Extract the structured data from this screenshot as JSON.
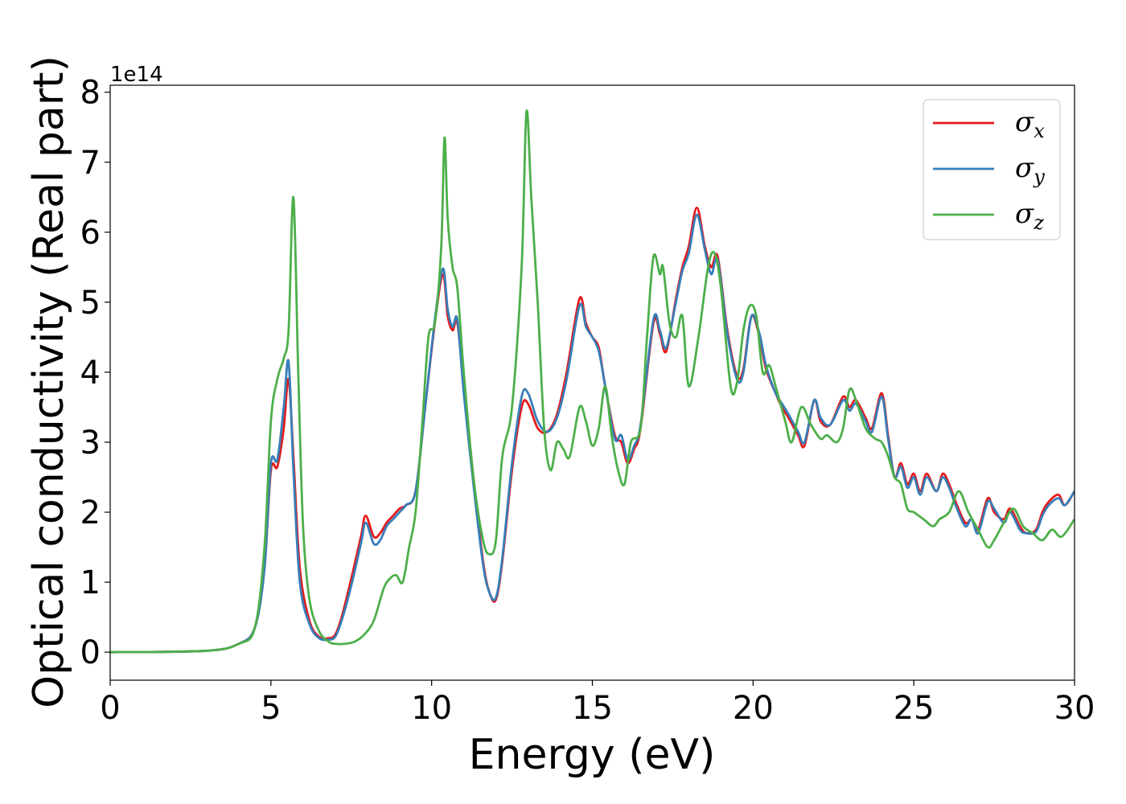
{
  "chart_data": {
    "type": "line",
    "title": "",
    "xlabel": "Energy (eV)",
    "ylabel": "Optical conductivity (Real part)",
    "y_offset_label": "1e14",
    "xlim": [
      0,
      30
    ],
    "ylim": [
      -0.4,
      8.1
    ],
    "xticks": [
      0,
      5,
      10,
      15,
      20,
      25,
      30
    ],
    "yticks": [
      0,
      1,
      2,
      3,
      4,
      5,
      6,
      7,
      8
    ],
    "xtick_labels": [
      "0",
      "5",
      "10",
      "15",
      "20",
      "25",
      "30"
    ],
    "ytick_labels": [
      "0",
      "1",
      "2",
      "3",
      "4",
      "5",
      "6",
      "7",
      "8"
    ],
    "grid": false,
    "legend_position": "top-right",
    "series": [
      {
        "name": "σx",
        "legend_symbol": "σ",
        "legend_subscript": "x",
        "color": "#e41a1c",
        "x": [
          0,
          3,
          4,
          4.5,
          4.8,
          5.0,
          5.2,
          5.4,
          5.55,
          5.7,
          5.9,
          6.2,
          6.5,
          6.8,
          7.0,
          7.2,
          7.5,
          7.8,
          7.95,
          8.2,
          8.4,
          8.6,
          8.8,
          9.0,
          9.2,
          9.5,
          9.8,
          10.1,
          10.35,
          10.5,
          10.65,
          10.8,
          11.0,
          11.3,
          11.6,
          11.8,
          12.0,
          12.2,
          12.5,
          12.8,
          13.0,
          13.3,
          13.6,
          13.9,
          14.2,
          14.6,
          14.8,
          15.0,
          15.2,
          15.4,
          15.7,
          15.9,
          16.1,
          16.3,
          16.5,
          16.9,
          17.1,
          17.3,
          17.6,
          17.8,
          18.0,
          18.25,
          18.5,
          18.7,
          18.9,
          19.2,
          19.5,
          19.7,
          19.95,
          20.2,
          20.4,
          20.7,
          20.9,
          21.1,
          21.4,
          21.6,
          21.9,
          22.1,
          22.4,
          22.8,
          23.0,
          23.2,
          23.5,
          23.7,
          24.0,
          24.2,
          24.4,
          24.6,
          24.8,
          25.0,
          25.2,
          25.4,
          25.7,
          25.9,
          26.1,
          26.3,
          26.6,
          26.8,
          27.0,
          27.3,
          27.5,
          27.8,
          28.0,
          28.3,
          28.5,
          28.8,
          29.0,
          29.2,
          29.5,
          29.7,
          30.0
        ],
        "values": [
          0,
          0.02,
          0.12,
          0.35,
          1.2,
          2.6,
          2.65,
          3.2,
          3.9,
          2.8,
          1.2,
          0.45,
          0.22,
          0.2,
          0.25,
          0.5,
          1.05,
          1.65,
          1.95,
          1.65,
          1.7,
          1.85,
          1.95,
          2.05,
          2.1,
          2.3,
          3.5,
          4.7,
          5.4,
          4.8,
          4.6,
          4.7,
          3.8,
          2.5,
          1.3,
          0.85,
          0.75,
          1.3,
          2.6,
          3.5,
          3.55,
          3.2,
          3.15,
          3.4,
          4.0,
          5.05,
          4.7,
          4.5,
          4.35,
          3.8,
          3.1,
          3.0,
          2.7,
          2.9,
          3.2,
          4.7,
          4.55,
          4.3,
          5.05,
          5.5,
          5.8,
          6.35,
          5.8,
          5.5,
          5.65,
          4.6,
          3.95,
          4.05,
          4.8,
          4.5,
          4.05,
          3.7,
          3.5,
          3.35,
          3.1,
          2.95,
          3.6,
          3.3,
          3.25,
          3.65,
          3.5,
          3.6,
          3.35,
          3.2,
          3.7,
          3.1,
          2.5,
          2.7,
          2.4,
          2.55,
          2.3,
          2.55,
          2.3,
          2.55,
          2.4,
          2.15,
          1.85,
          1.9,
          1.75,
          2.2,
          2.0,
          1.9,
          2.05,
          1.8,
          1.7,
          1.75,
          2.0,
          2.15,
          2.25,
          2.1,
          2.3
        ]
      },
      {
        "name": "σy",
        "legend_symbol": "σ",
        "legend_subscript": "y",
        "color": "#377eb8",
        "x": [
          0,
          3,
          4,
          4.5,
          4.8,
          5.0,
          5.2,
          5.4,
          5.55,
          5.7,
          5.9,
          6.2,
          6.5,
          6.8,
          7.0,
          7.2,
          7.5,
          7.8,
          7.95,
          8.2,
          8.4,
          8.6,
          8.8,
          9.0,
          9.2,
          9.5,
          9.8,
          10.1,
          10.35,
          10.5,
          10.65,
          10.8,
          11.0,
          11.3,
          11.6,
          11.8,
          12.0,
          12.2,
          12.5,
          12.8,
          13.0,
          13.3,
          13.6,
          13.9,
          14.2,
          14.6,
          14.8,
          15.0,
          15.2,
          15.4,
          15.7,
          15.9,
          16.1,
          16.3,
          16.5,
          16.9,
          17.1,
          17.3,
          17.6,
          17.8,
          18.0,
          18.25,
          18.5,
          18.7,
          18.9,
          19.2,
          19.5,
          19.7,
          19.95,
          20.2,
          20.4,
          20.7,
          20.9,
          21.1,
          21.4,
          21.6,
          21.9,
          22.1,
          22.4,
          22.8,
          23.0,
          23.2,
          23.5,
          23.7,
          24.0,
          24.2,
          24.4,
          24.6,
          24.8,
          25.0,
          25.2,
          25.4,
          25.7,
          25.9,
          26.1,
          26.3,
          26.6,
          26.8,
          27.0,
          27.3,
          27.5,
          27.8,
          28.0,
          28.3,
          28.5,
          28.8,
          29.0,
          29.2,
          29.5,
          29.7,
          30.0
        ],
        "values": [
          0,
          0.02,
          0.12,
          0.35,
          1.2,
          2.7,
          2.75,
          3.5,
          4.15,
          2.6,
          1.0,
          0.4,
          0.2,
          0.18,
          0.22,
          0.45,
          0.95,
          1.55,
          1.85,
          1.55,
          1.6,
          1.8,
          1.9,
          2.0,
          2.1,
          2.3,
          3.5,
          4.75,
          5.48,
          4.9,
          4.65,
          4.75,
          3.7,
          2.4,
          1.25,
          0.85,
          0.78,
          1.35,
          2.7,
          3.65,
          3.7,
          3.3,
          3.15,
          3.35,
          3.9,
          4.95,
          4.65,
          4.5,
          4.3,
          3.8,
          3.05,
          3.1,
          2.75,
          2.95,
          3.25,
          4.75,
          4.6,
          4.35,
          5.0,
          5.45,
          5.7,
          6.25,
          5.75,
          5.4,
          5.6,
          4.55,
          3.9,
          4.0,
          4.8,
          4.55,
          4.1,
          3.7,
          3.55,
          3.4,
          3.15,
          3.0,
          3.6,
          3.35,
          3.25,
          3.6,
          3.45,
          3.55,
          3.3,
          3.15,
          3.65,
          3.05,
          2.5,
          2.65,
          2.35,
          2.5,
          2.25,
          2.5,
          2.3,
          2.5,
          2.35,
          2.1,
          1.8,
          1.9,
          1.7,
          2.15,
          2.05,
          1.85,
          2.0,
          1.75,
          1.7,
          1.72,
          1.95,
          2.1,
          2.2,
          2.1,
          2.3
        ]
      },
      {
        "name": "σz",
        "legend_symbol": "σ",
        "legend_subscript": "z",
        "color": "#4daf4a",
        "x": [
          0,
          3,
          4,
          4.5,
          4.8,
          5.0,
          5.2,
          5.4,
          5.55,
          5.7,
          5.85,
          6.0,
          6.2,
          6.5,
          6.8,
          7.0,
          7.3,
          7.6,
          7.9,
          8.2,
          8.5,
          8.7,
          8.9,
          9.1,
          9.3,
          9.5,
          9.7,
          9.9,
          10.1,
          10.3,
          10.4,
          10.5,
          10.65,
          10.8,
          11.0,
          11.3,
          11.6,
          11.8,
          12.0,
          12.2,
          12.5,
          12.8,
          12.95,
          13.1,
          13.3,
          13.5,
          13.7,
          13.9,
          14.1,
          14.3,
          14.6,
          14.8,
          15.0,
          15.2,
          15.4,
          15.6,
          15.8,
          16.0,
          16.2,
          16.5,
          16.7,
          16.9,
          17.1,
          17.2,
          17.4,
          17.6,
          17.8,
          18.0,
          18.3,
          18.6,
          18.8,
          19.0,
          19.3,
          19.5,
          19.7,
          19.9,
          20.1,
          20.3,
          20.5,
          20.7,
          21.0,
          21.2,
          21.5,
          21.8,
          22.1,
          22.3,
          22.6,
          22.8,
          23.0,
          23.2,
          23.5,
          23.8,
          24.0,
          24.2,
          24.4,
          24.6,
          24.8,
          25.0,
          25.3,
          25.6,
          25.8,
          26.1,
          26.4,
          26.7,
          27.0,
          27.3,
          27.5,
          27.8,
          28.1,
          28.4,
          28.7,
          29.0,
          29.3,
          29.6,
          30.0
        ],
        "values": [
          0,
          0.02,
          0.12,
          0.35,
          1.5,
          3.3,
          3.9,
          4.2,
          4.6,
          6.5,
          4.0,
          1.8,
          0.75,
          0.3,
          0.15,
          0.12,
          0.12,
          0.15,
          0.25,
          0.45,
          0.9,
          1.05,
          1.1,
          1.0,
          1.5,
          2.0,
          3.2,
          4.5,
          4.7,
          5.8,
          7.35,
          6.2,
          5.5,
          5.2,
          4.0,
          2.5,
          1.6,
          1.4,
          1.6,
          2.8,
          3.5,
          5.5,
          7.72,
          6.5,
          5.0,
          3.2,
          2.6,
          3.0,
          2.9,
          2.8,
          3.5,
          3.3,
          2.95,
          3.2,
          3.8,
          3.1,
          2.6,
          2.4,
          3.0,
          3.2,
          4.5,
          5.65,
          5.4,
          5.5,
          4.7,
          4.5,
          4.8,
          3.8,
          4.5,
          5.5,
          5.7,
          5.2,
          3.8,
          3.85,
          4.6,
          4.95,
          4.8,
          4.0,
          4.1,
          3.8,
          3.3,
          3.0,
          3.5,
          3.25,
          3.05,
          3.1,
          3.0,
          3.2,
          3.75,
          3.6,
          3.2,
          3.05,
          3.0,
          2.8,
          2.5,
          2.4,
          2.05,
          2.0,
          1.9,
          1.8,
          1.9,
          2.0,
          2.3,
          2.0,
          1.75,
          1.5,
          1.6,
          1.85,
          2.05,
          1.8,
          1.7,
          1.6,
          1.75,
          1.65,
          1.9
        ]
      }
    ]
  }
}
